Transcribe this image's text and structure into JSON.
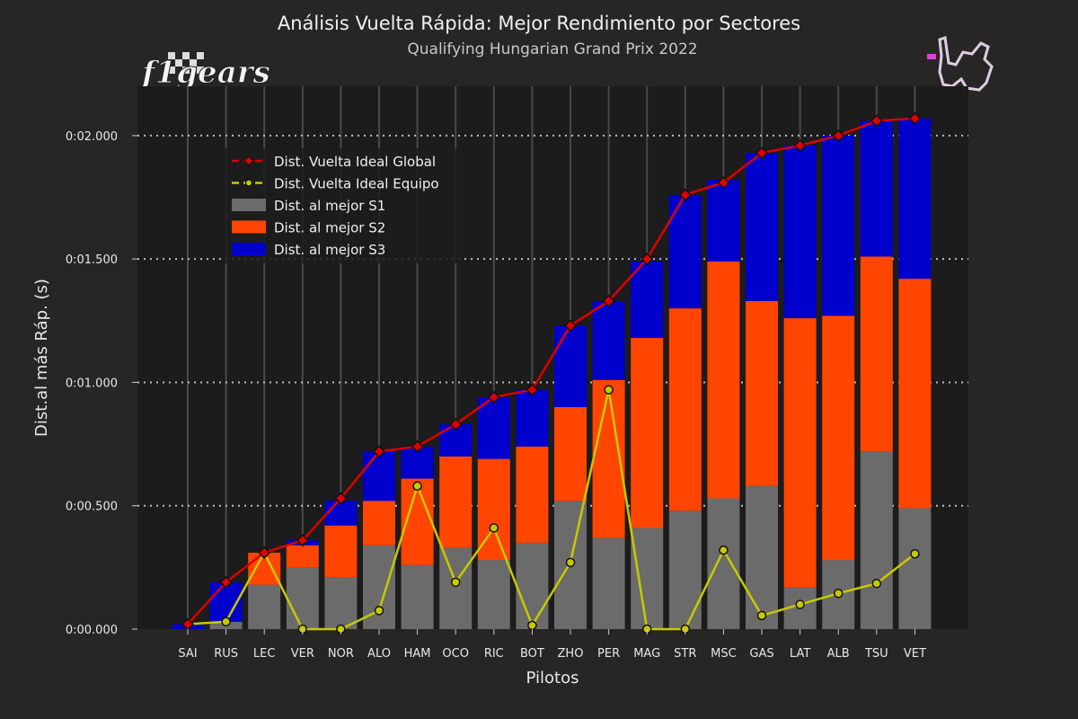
{
  "title": "Análisis Vuelta Rápida: Mejor Rendimiento por Sectores",
  "subtitle": "Qualifying Hungarian Grand Prix 2022",
  "logo_text": "f1gears",
  "colors": {
    "background": "#282624",
    "plot_bg": "#1c1c1c",
    "s1": "#6b6b6b",
    "s2": "#ff4500",
    "s3": "#0000cd",
    "global": "#dd0000",
    "team": "#c8c800"
  },
  "chart_data": {
    "type": "bar",
    "stacked": true,
    "xlabel": "Pilotos",
    "ylabel": "Dist.al más Ráp. (s)",
    "ylim": [
      0,
      2.2
    ],
    "yticks": [
      0,
      0.5,
      1.0,
      1.5,
      2.0
    ],
    "ytick_labels": [
      "0:00.000",
      "0:00.500",
      "0:01.000",
      "0:01.500",
      "0:02.000"
    ],
    "grid": true,
    "legend_position": "upper-left",
    "categories": [
      "SAI",
      "RUS",
      "LEC",
      "VER",
      "NOR",
      "ALO",
      "HAM",
      "OCO",
      "RIC",
      "BOT",
      "ZHO",
      "PER",
      "MAG",
      "STR",
      "MSC",
      "GAS",
      "LAT",
      "ALB",
      "TSU",
      "VET"
    ],
    "series": [
      {
        "name": "Dist. al mejor S1",
        "kind": "bar",
        "color": "#6b6b6b",
        "values": [
          0.0,
          0.03,
          0.18,
          0.25,
          0.21,
          0.34,
          0.26,
          0.33,
          0.28,
          0.35,
          0.52,
          0.37,
          0.41,
          0.48,
          0.53,
          0.58,
          0.17,
          0.28,
          0.72,
          0.49
        ]
      },
      {
        "name": "Dist. al mejor S2",
        "kind": "bar",
        "color": "#ff4500",
        "values": [
          0.0,
          0.0,
          0.13,
          0.09,
          0.21,
          0.18,
          0.35,
          0.37,
          0.41,
          0.39,
          0.38,
          0.64,
          0.77,
          0.82,
          0.96,
          0.75,
          1.09,
          0.99,
          0.79,
          0.93
        ]
      },
      {
        "name": "Dist. al mejor S3",
        "kind": "bar",
        "color": "#0000cd",
        "values": [
          0.02,
          0.16,
          0.0,
          0.02,
          0.1,
          0.2,
          0.13,
          0.13,
          0.25,
          0.23,
          0.33,
          0.32,
          0.31,
          0.46,
          0.33,
          0.6,
          0.7,
          0.73,
          0.55,
          0.65
        ]
      },
      {
        "name": "Dist. Vuelta Ideal Global",
        "kind": "line",
        "marker": "diamond",
        "color": "#dd0000",
        "values": [
          0.02,
          0.19,
          0.31,
          0.36,
          0.53,
          0.72,
          0.74,
          0.83,
          0.94,
          0.97,
          1.23,
          1.33,
          1.5,
          1.76,
          1.81,
          1.93,
          1.96,
          2.0,
          2.06,
          2.07
        ]
      },
      {
        "name": "Dist. Vuelta Ideal Equipo",
        "kind": "line",
        "marker": "circle",
        "color": "#c8c800",
        "values": [
          0.02,
          0.03,
          0.31,
          0.0,
          0.0,
          0.075,
          0.58,
          0.19,
          0.41,
          0.015,
          0.27,
          0.97,
          0.0,
          0.0,
          0.32,
          0.055,
          0.1,
          0.145,
          0.185,
          0.305
        ]
      }
    ],
    "legend": [
      "Dist. Vuelta Ideal Global",
      "Dist. Vuelta Ideal Equipo",
      "Dist. al mejor S1",
      "Dist. al mejor S2",
      "Dist. al mejor S3"
    ]
  }
}
